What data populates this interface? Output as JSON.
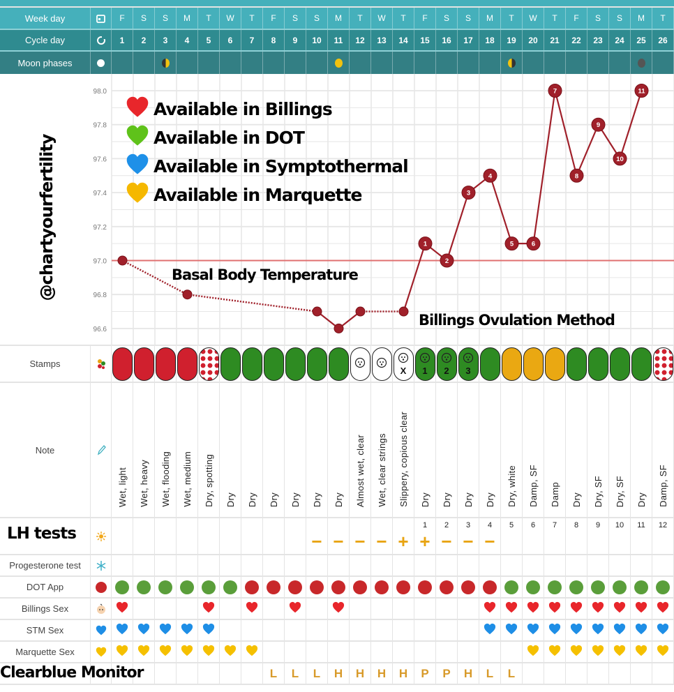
{
  "header": {
    "week_day_label": "Week day",
    "cycle_day_label": "Cycle day",
    "moon_label": "Moon phases",
    "week_days": [
      "F",
      "S",
      "S",
      "M",
      "T",
      "W",
      "T",
      "F",
      "S",
      "S",
      "M",
      "T",
      "W",
      "T",
      "F",
      "S",
      "S",
      "M",
      "T",
      "W",
      "T",
      "F",
      "S",
      "S",
      "M",
      "T"
    ],
    "cycle_days": [
      "1",
      "2",
      "3",
      "4",
      "5",
      "6",
      "7",
      "8",
      "9",
      "10",
      "11",
      "12",
      "13",
      "14",
      "15",
      "16",
      "17",
      "18",
      "19",
      "20",
      "21",
      "22",
      "23",
      "24",
      "25",
      "26"
    ],
    "moon_phases": {
      "3": "first-quarter",
      "11": "full",
      "19": "last-quarter",
      "25": "new"
    }
  },
  "chart_data": {
    "type": "line",
    "title": "",
    "ylabel": "",
    "xlabel": "",
    "ylim": [
      96.6,
      98.0
    ],
    "yticks": [
      "98.0",
      "97.8",
      "97.6",
      "97.4",
      "97.2",
      "97.0",
      "96.8",
      "96.6"
    ],
    "coverline": 97.0,
    "grid": true,
    "points": [
      {
        "day": 1,
        "temp": 97.0,
        "label": ""
      },
      {
        "day": 4,
        "temp": 96.8,
        "label": ""
      },
      {
        "day": 10,
        "temp": 96.7,
        "label": ""
      },
      {
        "day": 11,
        "temp": 96.6,
        "label": ""
      },
      {
        "day": 12,
        "temp": 96.7,
        "label": ""
      },
      {
        "day": 14,
        "temp": 96.7,
        "label": ""
      },
      {
        "day": 15,
        "temp": 97.1,
        "label": "1"
      },
      {
        "day": 16,
        "temp": 97.0,
        "label": "2"
      },
      {
        "day": 17,
        "temp": 97.4,
        "label": "3"
      },
      {
        "day": 18,
        "temp": 97.5,
        "label": "4"
      },
      {
        "day": 19,
        "temp": 97.1,
        "label": "5"
      },
      {
        "day": 20,
        "temp": 97.1,
        "label": "6"
      },
      {
        "day": 21,
        "temp": 98.0,
        "label": "7"
      },
      {
        "day": 22,
        "temp": 97.5,
        "label": "8"
      },
      {
        "day": 23,
        "temp": 97.8,
        "label": "9"
      },
      {
        "day": 24,
        "temp": 97.6,
        "label": "10"
      },
      {
        "day": 25,
        "temp": 98.0,
        "label": "11"
      }
    ],
    "dotted_segments_after_day": [
      1,
      4,
      12
    ]
  },
  "overlay": {
    "watermark": "@chartyourfertility",
    "legend": [
      {
        "text": "Available in Billings",
        "color": "#e8262b"
      },
      {
        "text": "Available in DOT",
        "color": "#5fc21a"
      },
      {
        "text": "Available in Symptothermal",
        "color": "#1e90e8"
      },
      {
        "text": "Available in Marquette",
        "color": "#f5b800"
      }
    ],
    "bbt_label": "Basal Body Temperature",
    "billings_label": "Billings Ovulation Method",
    "lh_label": "LH tests",
    "clearblue_label": "Clearblue Monitor"
  },
  "rows": {
    "stamps_label": "Stamps",
    "note_label": "Note",
    "progesterone_label": "Progesterone test",
    "dot_label": "DOT App",
    "billings_label": "Billings Sex",
    "stm_label": "STM Sex",
    "marquette_label": "Marquette Sex"
  },
  "colors": {
    "red": "#d0202e",
    "green": "#2e8b22",
    "yellow": "#eaa812",
    "dot_red": "#c8282a",
    "dot_green": "#5a9e3a",
    "bbt": "#a0202a"
  },
  "stamps": [
    "red",
    "red",
    "red",
    "red",
    "red-dots",
    "green",
    "green",
    "green",
    "green",
    "green",
    "green",
    "white-baby",
    "white-baby",
    "white-baby-x",
    "green-baby-1",
    "green-baby-2",
    "green-baby-3",
    "green",
    "yellow",
    "yellow",
    "yellow",
    "green",
    "green",
    "green",
    "green",
    "red-dots"
  ],
  "stamp_texts": {
    "14": "X",
    "15": "1",
    "16": "2",
    "17": "3"
  },
  "notes": [
    "Wet, light",
    "Wet, heavy",
    "Wet, flooding",
    "Wet, medium",
    "Dry, spotting",
    "Dry",
    "Dry",
    "Dry",
    "Dry",
    "Dry",
    "Dry",
    "Almost wet, clear",
    "Wet, clear strings",
    "Slippery, copious clear",
    "Dry",
    "Dry",
    "Dry",
    "Dry",
    "Dry, white",
    "Damp, SF",
    "Damp",
    "Dry",
    "Dry, SF",
    "Dry, SF",
    "Dry",
    "Damp, SF"
  ],
  "lh_tests": [
    "",
    "",
    "",
    "",
    "",
    "",
    "",
    "",
    "",
    "−",
    "−",
    "−",
    "−",
    "+",
    "+",
    "−",
    "−",
    "−",
    "",
    "",
    "",
    "",
    "",
    "",
    "",
    ""
  ],
  "lh_day_numbers": [
    "",
    "",
    "",
    "",
    "",
    "",
    "",
    "",
    "",
    "",
    "",
    "",
    "",
    "",
    "1",
    "2",
    "3",
    "4",
    "5",
    "6",
    "7",
    "8",
    "9",
    "10",
    "11",
    "12"
  ],
  "dot_app": [
    "green",
    "green",
    "green",
    "green",
    "green",
    "green",
    "red",
    "red",
    "red",
    "red",
    "red",
    "red",
    "red",
    "red",
    "red",
    "red",
    "red",
    "red",
    "green",
    "green",
    "green",
    "green",
    "green",
    "green",
    "green",
    "green"
  ],
  "billings_sex": [
    1,
    0,
    0,
    0,
    1,
    0,
    1,
    0,
    1,
    0,
    1,
    0,
    0,
    0,
    0,
    0,
    0,
    1,
    1,
    1,
    1,
    1,
    1,
    1,
    1,
    1
  ],
  "stm_sex": [
    1,
    1,
    1,
    1,
    1,
    0,
    0,
    0,
    0,
    0,
    0,
    0,
    0,
    0,
    0,
    0,
    0,
    1,
    1,
    1,
    1,
    1,
    1,
    1,
    1,
    1
  ],
  "marquette_sex": [
    1,
    1,
    1,
    1,
    1,
    1,
    1,
    0,
    0,
    0,
    0,
    0,
    0,
    0,
    0,
    0,
    0,
    0,
    0,
    1,
    1,
    1,
    1,
    1,
    1,
    1
  ],
  "clearblue": [
    "",
    "",
    "",
    "",
    "",
    "",
    "",
    "L",
    "L",
    "L",
    "H",
    "H",
    "H",
    "H",
    "P",
    "P",
    "H",
    "L",
    "L",
    "",
    "",
    "",
    "",
    "",
    "",
    ""
  ]
}
